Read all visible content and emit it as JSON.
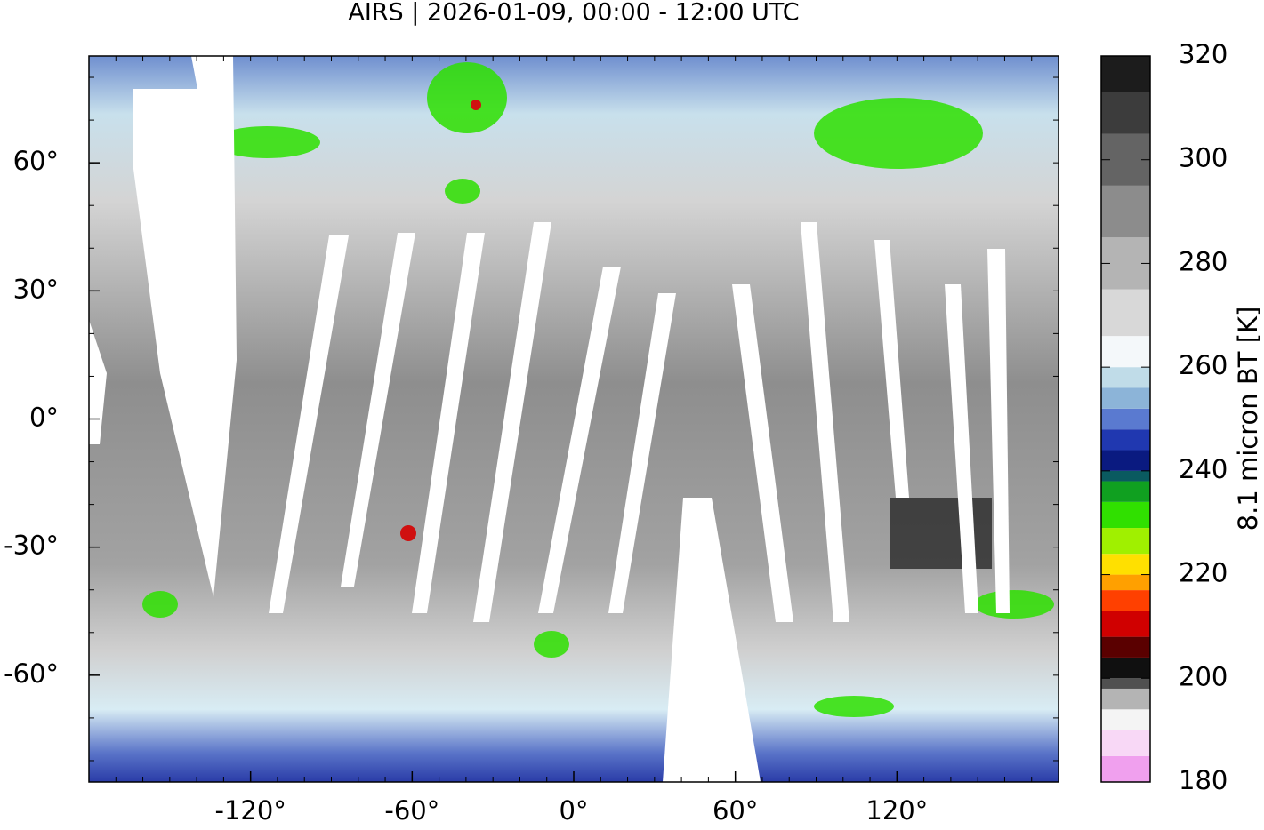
{
  "title": "AIRS | 2026-01-09, 00:00 - 12:00 UTC",
  "map": {
    "xlim": [
      -180,
      180
    ],
    "ylim": [
      -85,
      85
    ],
    "xticks": [
      {
        "value": -120,
        "label": "-120°"
      },
      {
        "value": -60,
        "label": "-60°"
      },
      {
        "value": 0,
        "label": "0°"
      },
      {
        "value": 60,
        "label": "60°"
      },
      {
        "value": 120,
        "label": "120°"
      }
    ],
    "yticks": [
      {
        "value": 60,
        "label": "60°"
      },
      {
        "value": 30,
        "label": "30°"
      },
      {
        "value": 0,
        "label": "0°"
      },
      {
        "value": -30,
        "label": "-30°"
      },
      {
        "value": -60,
        "label": "-60°"
      }
    ]
  },
  "colorbar": {
    "label": "8.1 micron BT [K]",
    "lim": [
      180,
      320
    ],
    "ticks": [
      180,
      200,
      220,
      240,
      260,
      280,
      300,
      320
    ],
    "stops": [
      {
        "value": 180,
        "color": "#f0a0ee"
      },
      {
        "value": 185,
        "color": "#f8d8f6"
      },
      {
        "value": 190,
        "color": "#f4f4f4"
      },
      {
        "value": 194,
        "color": "#b4b4b4"
      },
      {
        "value": 198,
        "color": "#505050"
      },
      {
        "value": 200,
        "color": "#101010"
      },
      {
        "value": 204,
        "color": "#5a0000"
      },
      {
        "value": 208,
        "color": "#d00000"
      },
      {
        "value": 213,
        "color": "#ff4000"
      },
      {
        "value": 217,
        "color": "#ffa000"
      },
      {
        "value": 220,
        "color": "#ffe000"
      },
      {
        "value": 224,
        "color": "#a0f000"
      },
      {
        "value": 229,
        "color": "#30e000"
      },
      {
        "value": 234,
        "color": "#10a020"
      },
      {
        "value": 238,
        "color": "#0a5a60"
      },
      {
        "value": 240,
        "color": "#0a1a80"
      },
      {
        "value": 244,
        "color": "#2038b0"
      },
      {
        "value": 248,
        "color": "#5a7ad0"
      },
      {
        "value": 252,
        "color": "#8cb4d8"
      },
      {
        "value": 256,
        "color": "#c0dce8"
      },
      {
        "value": 260,
        "color": "#f4f8fa"
      },
      {
        "value": 266,
        "color": "#d8d8d8"
      },
      {
        "value": 275,
        "color": "#b4b4b4"
      },
      {
        "value": 285,
        "color": "#8c8c8c"
      },
      {
        "value": 295,
        "color": "#646464"
      },
      {
        "value": 305,
        "color": "#3c3c3c"
      },
      {
        "value": 313,
        "color": "#1c1c1c"
      },
      {
        "value": 320,
        "color": "#000000"
      }
    ]
  }
}
